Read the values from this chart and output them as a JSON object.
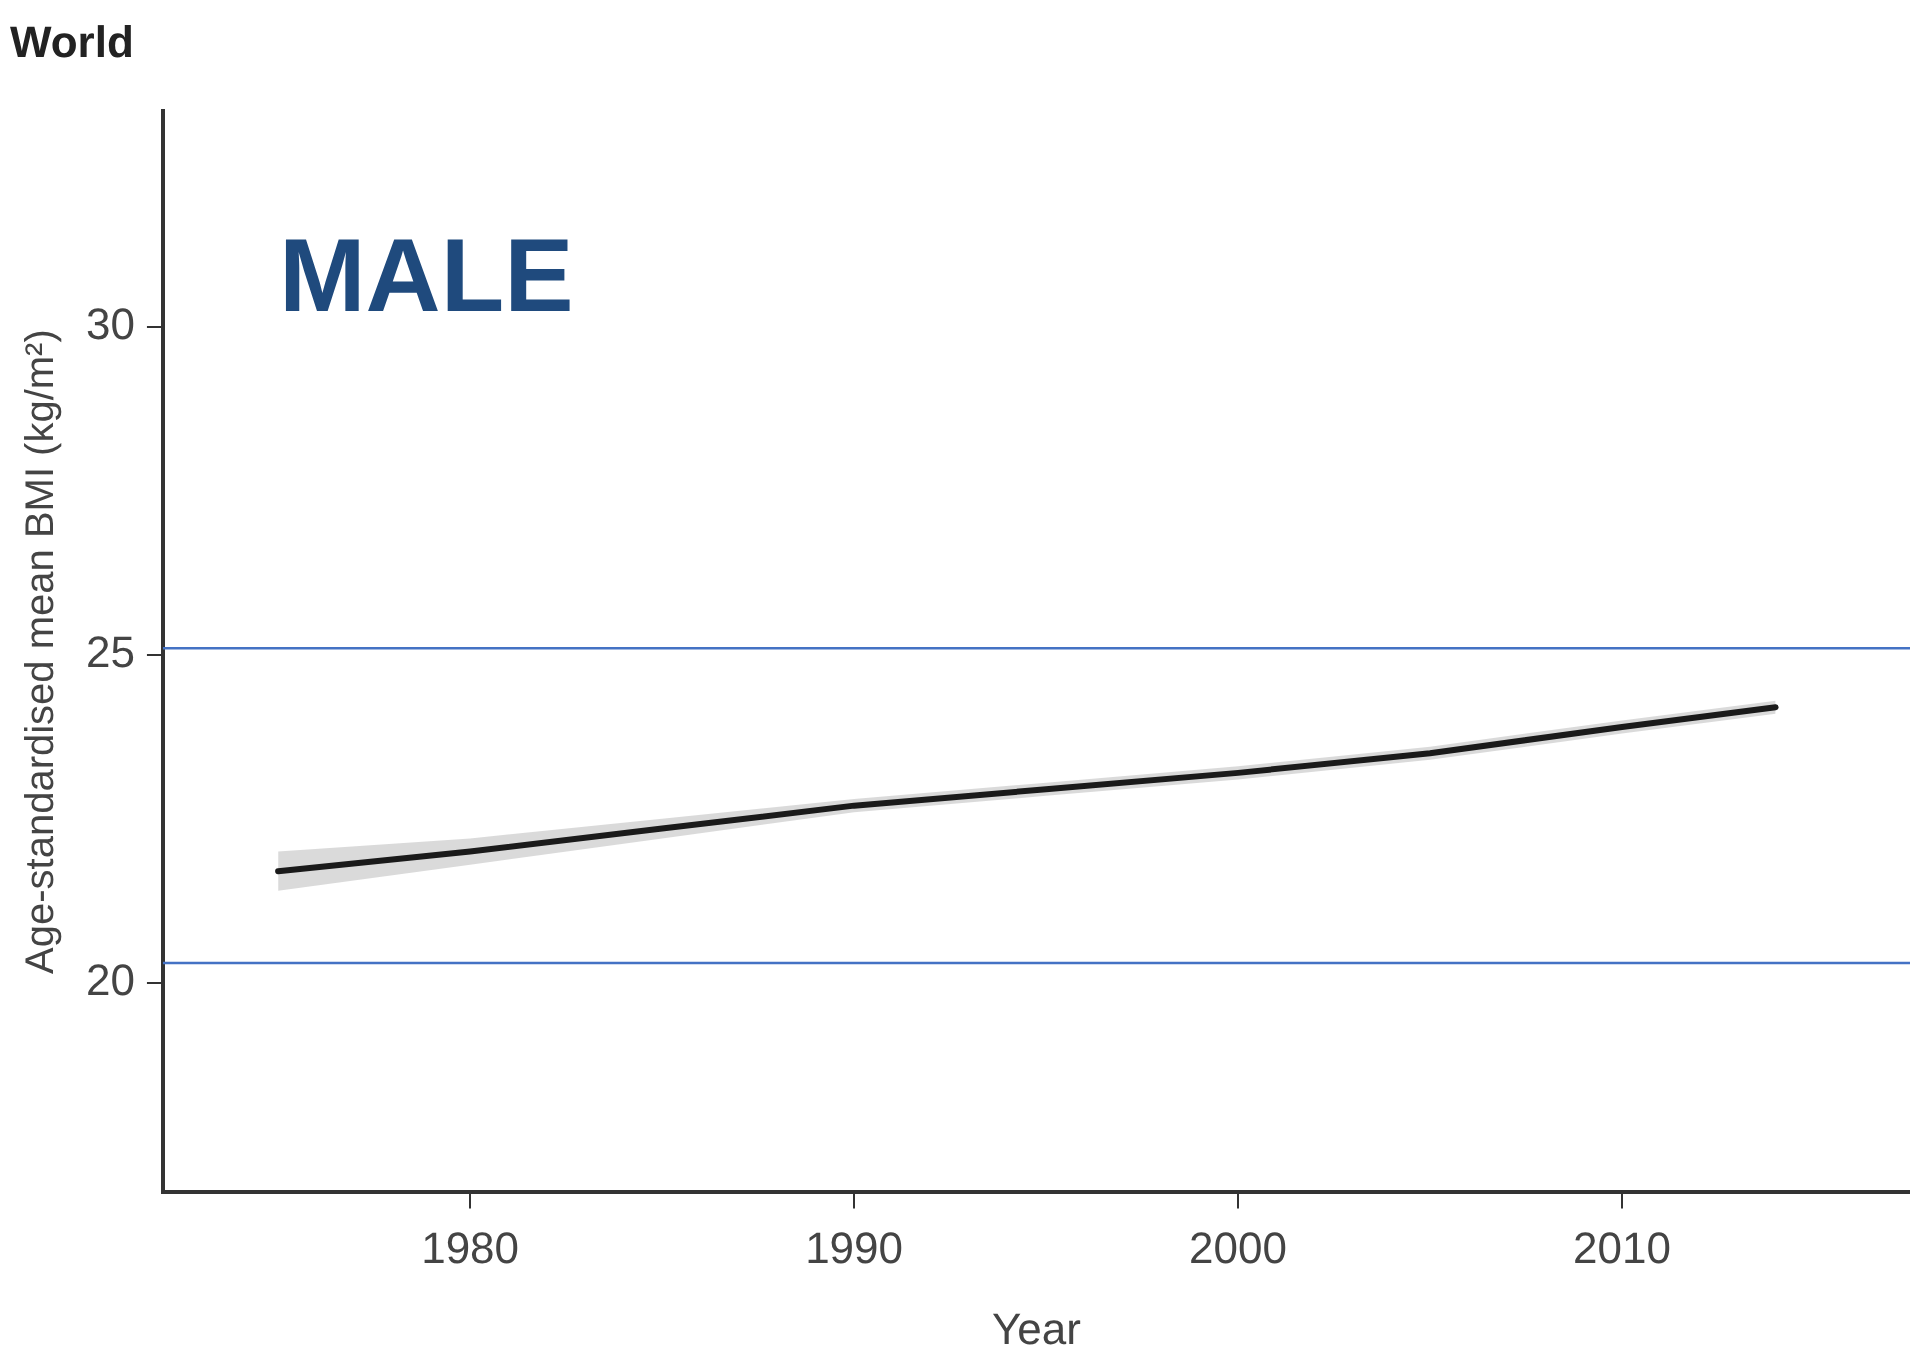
{
  "chart_data": {
    "type": "line",
    "title": "World",
    "xlabel": "Year",
    "ylabel": "Age-standardised mean BMI (kg/m²)",
    "annotations": [
      "MALE"
    ],
    "x": [
      1975,
      1980,
      1985,
      1990,
      1995,
      2000,
      2005,
      2010,
      2014
    ],
    "series": [
      {
        "color": "#1a1a1a",
        "values": [
          21.7,
          22.0,
          22.35,
          22.7,
          22.95,
          23.2,
          23.5,
          23.9,
          24.2
        ],
        "lower": [
          21.4,
          21.8,
          22.2,
          22.6,
          22.85,
          23.1,
          23.4,
          23.8,
          24.1
        ],
        "upper": [
          22.0,
          22.2,
          22.5,
          22.8,
          23.05,
          23.3,
          23.6,
          24.0,
          24.3
        ]
      }
    ],
    "xlim": [
      1972,
      2017.5
    ],
    "ylim": [
      16.8,
      33.3
    ],
    "xticks": [
      1980,
      1990,
      2000,
      2010
    ],
    "yticks": [
      20,
      25,
      30
    ],
    "ref_lines": [
      {
        "axis": "y",
        "value": 25.1,
        "color": "#4472c4"
      },
      {
        "axis": "y",
        "value": 20.3,
        "color": "#4472c4"
      }
    ],
    "grid": false,
    "legend": false,
    "marker": "none",
    "line_style": "solid"
  }
}
